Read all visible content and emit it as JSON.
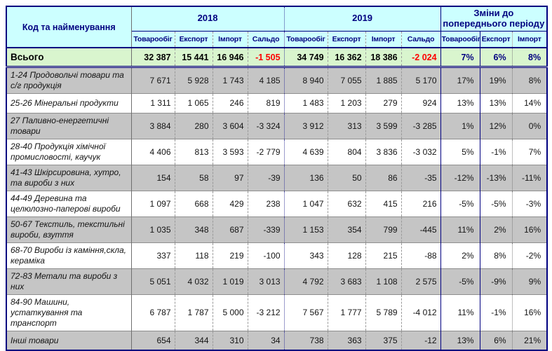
{
  "colors": {
    "header_background": "#CCFFFF",
    "header_text": "#000080",
    "total_row_background": "#D9F5CE",
    "alt_row_background": "#C5C5C5",
    "positive_value": "#2A2AAE",
    "negative_value": "#FF3030",
    "total_negative_value": "#FF0000",
    "table_border": "#000080"
  },
  "table": {
    "corner_header": "Код та найменування",
    "column_groups": [
      {
        "label": "2018",
        "columns": [
          "Товарообіг",
          "Експорт",
          "Імпорт",
          "Сальдо"
        ]
      },
      {
        "label": "2019",
        "columns": [
          "Товарообіг",
          "Експорт",
          "Імпорт",
          "Сальдо"
        ]
      },
      {
        "label": "Зміни до попереднього періоду",
        "columns": [
          "Товарообіг",
          "Експорт",
          "Імпорт"
        ]
      }
    ],
    "total_row": {
      "label": "Всього",
      "y2018": [
        "32 387",
        "15 441",
        "16 946",
        "-1 505"
      ],
      "y2019": [
        "34 749",
        "16 362",
        "18 386",
        "-2 024"
      ],
      "changes": [
        "7%",
        "6%",
        "8%"
      ]
    },
    "rows": [
      {
        "label": "1-24 Продовольчі товари та с/г продукція",
        "y2018": [
          "7 671",
          "5 928",
          "1 743",
          "4 185"
        ],
        "y2019": [
          "8 940",
          "7 055",
          "1 885",
          "5 170"
        ],
        "changes": [
          "17%",
          "19%",
          "8%"
        ]
      },
      {
        "label": "25-26 Мінеральні продукти",
        "y2018": [
          "1 311",
          "1 065",
          "246",
          "819"
        ],
        "y2019": [
          "1 483",
          "1 203",
          "279",
          "924"
        ],
        "changes": [
          "13%",
          "13%",
          "14%"
        ]
      },
      {
        "label": "27 Паливно-енергетичні товари",
        "y2018": [
          "3 884",
          "280",
          "3 604",
          "-3 324"
        ],
        "y2019": [
          "3 912",
          "313",
          "3 599",
          "-3 285"
        ],
        "changes": [
          "1%",
          "12%",
          "0%"
        ]
      },
      {
        "label": "28-40 Продукція хімічної промисловості, каучук",
        "y2018": [
          "4 406",
          "813",
          "3 593",
          "-2 779"
        ],
        "y2019": [
          "4 639",
          "804",
          "3 836",
          "-3 032"
        ],
        "changes": [
          "5%",
          "-1%",
          "7%"
        ]
      },
      {
        "label": "41-43 Шкірсировина, хутро, та вироби з них",
        "y2018": [
          "154",
          "58",
          "97",
          "-39"
        ],
        "y2019": [
          "136",
          "50",
          "86",
          "-35"
        ],
        "changes": [
          "-12%",
          "-13%",
          "-11%"
        ]
      },
      {
        "label": "44-49 Деревина та целюлозно-паперові вироби",
        "y2018": [
          "1 097",
          "668",
          "429",
          "238"
        ],
        "y2019": [
          "1 047",
          "632",
          "415",
          "216"
        ],
        "changes": [
          "-5%",
          "-5%",
          "-3%"
        ]
      },
      {
        "label": "50-67 Текстиль, текстильні вироби, взуття",
        "y2018": [
          "1 035",
          "348",
          "687",
          "-339"
        ],
        "y2019": [
          "1 153",
          "354",
          "799",
          "-445"
        ],
        "changes": [
          "11%",
          "2%",
          "16%"
        ]
      },
      {
        "label": "68-70 Вироби із каміння,скла, кераміка",
        "y2018": [
          "337",
          "118",
          "219",
          "-100"
        ],
        "y2019": [
          "343",
          "128",
          "215",
          "-88"
        ],
        "changes": [
          "2%",
          "8%",
          "-2%"
        ]
      },
      {
        "label": "72-83 Метали та вироби з них",
        "y2018": [
          "5 051",
          "4 032",
          "1 019",
          "3 013"
        ],
        "y2019": [
          "4 792",
          "3 683",
          "1 108",
          "2 575"
        ],
        "changes": [
          "-5%",
          "-9%",
          "9%"
        ]
      },
      {
        "label": "84-90 Машини, устаткування та транспорт",
        "y2018": [
          "6 787",
          "1 787",
          "5 000",
          "-3 212"
        ],
        "y2019": [
          "7 567",
          "1 777",
          "5 789",
          "-4 012"
        ],
        "changes": [
          "11%",
          "-1%",
          "16%"
        ]
      },
      {
        "label": "Інші товари",
        "y2018": [
          "654",
          "344",
          "310",
          "34"
        ],
        "y2019": [
          "738",
          "363",
          "375",
          "-12"
        ],
        "changes": [
          "13%",
          "6%",
          "21%"
        ]
      }
    ]
  }
}
